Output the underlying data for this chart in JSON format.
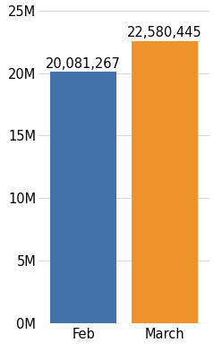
{
  "categories": [
    "Feb",
    "March"
  ],
  "values": [
    20081267,
    22580445
  ],
  "bar_colors": [
    "#4472a8",
    "#f0922b"
  ],
  "labels": [
    "20,081,267",
    "22,580,445"
  ],
  "ylim": [
    0,
    25000000
  ],
  "yticks": [
    0,
    5000000,
    10000000,
    15000000,
    20000000,
    25000000
  ],
  "ytick_labels": [
    "0M",
    "5M",
    "10M",
    "15M",
    "20M",
    "25M"
  ],
  "background_color": "#ffffff",
  "grid_color": "#d8d8d8",
  "label_fontsize": 10.5,
  "tick_fontsize": 10.5,
  "bar_width": 0.82
}
